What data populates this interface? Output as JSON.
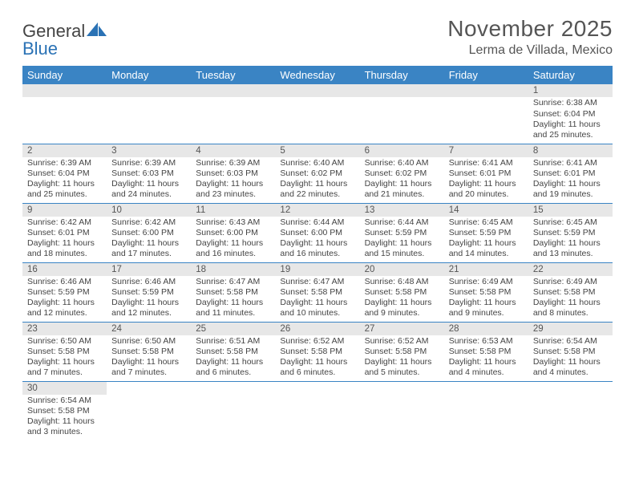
{
  "brand": {
    "general": "General",
    "blue": "Blue"
  },
  "title": "November 2025",
  "location": "Lerma de Villada, Mexico",
  "colors": {
    "header_bg": "#3a84c4",
    "header_text": "#ffffff",
    "daynum_bg": "#e7e7e7",
    "row_border": "#3a84c4",
    "page_bg": "#ffffff",
    "text": "#444444"
  },
  "weekdays": [
    "Sunday",
    "Monday",
    "Tuesday",
    "Wednesday",
    "Thursday",
    "Friday",
    "Saturday"
  ],
  "weeks": [
    [
      null,
      null,
      null,
      null,
      null,
      null,
      {
        "n": "1",
        "sr": "Sunrise: 6:38 AM",
        "ss": "Sunset: 6:04 PM",
        "dl1": "Daylight: 11 hours",
        "dl2": "and 25 minutes."
      }
    ],
    [
      {
        "n": "2",
        "sr": "Sunrise: 6:39 AM",
        "ss": "Sunset: 6:04 PM",
        "dl1": "Daylight: 11 hours",
        "dl2": "and 25 minutes."
      },
      {
        "n": "3",
        "sr": "Sunrise: 6:39 AM",
        "ss": "Sunset: 6:03 PM",
        "dl1": "Daylight: 11 hours",
        "dl2": "and 24 minutes."
      },
      {
        "n": "4",
        "sr": "Sunrise: 6:39 AM",
        "ss": "Sunset: 6:03 PM",
        "dl1": "Daylight: 11 hours",
        "dl2": "and 23 minutes."
      },
      {
        "n": "5",
        "sr": "Sunrise: 6:40 AM",
        "ss": "Sunset: 6:02 PM",
        "dl1": "Daylight: 11 hours",
        "dl2": "and 22 minutes."
      },
      {
        "n": "6",
        "sr": "Sunrise: 6:40 AM",
        "ss": "Sunset: 6:02 PM",
        "dl1": "Daylight: 11 hours",
        "dl2": "and 21 minutes."
      },
      {
        "n": "7",
        "sr": "Sunrise: 6:41 AM",
        "ss": "Sunset: 6:01 PM",
        "dl1": "Daylight: 11 hours",
        "dl2": "and 20 minutes."
      },
      {
        "n": "8",
        "sr": "Sunrise: 6:41 AM",
        "ss": "Sunset: 6:01 PM",
        "dl1": "Daylight: 11 hours",
        "dl2": "and 19 minutes."
      }
    ],
    [
      {
        "n": "9",
        "sr": "Sunrise: 6:42 AM",
        "ss": "Sunset: 6:01 PM",
        "dl1": "Daylight: 11 hours",
        "dl2": "and 18 minutes."
      },
      {
        "n": "10",
        "sr": "Sunrise: 6:42 AM",
        "ss": "Sunset: 6:00 PM",
        "dl1": "Daylight: 11 hours",
        "dl2": "and 17 minutes."
      },
      {
        "n": "11",
        "sr": "Sunrise: 6:43 AM",
        "ss": "Sunset: 6:00 PM",
        "dl1": "Daylight: 11 hours",
        "dl2": "and 16 minutes."
      },
      {
        "n": "12",
        "sr": "Sunrise: 6:44 AM",
        "ss": "Sunset: 6:00 PM",
        "dl1": "Daylight: 11 hours",
        "dl2": "and 16 minutes."
      },
      {
        "n": "13",
        "sr": "Sunrise: 6:44 AM",
        "ss": "Sunset: 5:59 PM",
        "dl1": "Daylight: 11 hours",
        "dl2": "and 15 minutes."
      },
      {
        "n": "14",
        "sr": "Sunrise: 6:45 AM",
        "ss": "Sunset: 5:59 PM",
        "dl1": "Daylight: 11 hours",
        "dl2": "and 14 minutes."
      },
      {
        "n": "15",
        "sr": "Sunrise: 6:45 AM",
        "ss": "Sunset: 5:59 PM",
        "dl1": "Daylight: 11 hours",
        "dl2": "and 13 minutes."
      }
    ],
    [
      {
        "n": "16",
        "sr": "Sunrise: 6:46 AM",
        "ss": "Sunset: 5:59 PM",
        "dl1": "Daylight: 11 hours",
        "dl2": "and 12 minutes."
      },
      {
        "n": "17",
        "sr": "Sunrise: 6:46 AM",
        "ss": "Sunset: 5:59 PM",
        "dl1": "Daylight: 11 hours",
        "dl2": "and 12 minutes."
      },
      {
        "n": "18",
        "sr": "Sunrise: 6:47 AM",
        "ss": "Sunset: 5:58 PM",
        "dl1": "Daylight: 11 hours",
        "dl2": "and 11 minutes."
      },
      {
        "n": "19",
        "sr": "Sunrise: 6:47 AM",
        "ss": "Sunset: 5:58 PM",
        "dl1": "Daylight: 11 hours",
        "dl2": "and 10 minutes."
      },
      {
        "n": "20",
        "sr": "Sunrise: 6:48 AM",
        "ss": "Sunset: 5:58 PM",
        "dl1": "Daylight: 11 hours",
        "dl2": "and 9 minutes."
      },
      {
        "n": "21",
        "sr": "Sunrise: 6:49 AM",
        "ss": "Sunset: 5:58 PM",
        "dl1": "Daylight: 11 hours",
        "dl2": "and 9 minutes."
      },
      {
        "n": "22",
        "sr": "Sunrise: 6:49 AM",
        "ss": "Sunset: 5:58 PM",
        "dl1": "Daylight: 11 hours",
        "dl2": "and 8 minutes."
      }
    ],
    [
      {
        "n": "23",
        "sr": "Sunrise: 6:50 AM",
        "ss": "Sunset: 5:58 PM",
        "dl1": "Daylight: 11 hours",
        "dl2": "and 7 minutes."
      },
      {
        "n": "24",
        "sr": "Sunrise: 6:50 AM",
        "ss": "Sunset: 5:58 PM",
        "dl1": "Daylight: 11 hours",
        "dl2": "and 7 minutes."
      },
      {
        "n": "25",
        "sr": "Sunrise: 6:51 AM",
        "ss": "Sunset: 5:58 PM",
        "dl1": "Daylight: 11 hours",
        "dl2": "and 6 minutes."
      },
      {
        "n": "26",
        "sr": "Sunrise: 6:52 AM",
        "ss": "Sunset: 5:58 PM",
        "dl1": "Daylight: 11 hours",
        "dl2": "and 6 minutes."
      },
      {
        "n": "27",
        "sr": "Sunrise: 6:52 AM",
        "ss": "Sunset: 5:58 PM",
        "dl1": "Daylight: 11 hours",
        "dl2": "and 5 minutes."
      },
      {
        "n": "28",
        "sr": "Sunrise: 6:53 AM",
        "ss": "Sunset: 5:58 PM",
        "dl1": "Daylight: 11 hours",
        "dl2": "and 4 minutes."
      },
      {
        "n": "29",
        "sr": "Sunrise: 6:54 AM",
        "ss": "Sunset: 5:58 PM",
        "dl1": "Daylight: 11 hours",
        "dl2": "and 4 minutes."
      }
    ],
    [
      {
        "n": "30",
        "sr": "Sunrise: 6:54 AM",
        "ss": "Sunset: 5:58 PM",
        "dl1": "Daylight: 11 hours",
        "dl2": "and 3 minutes."
      },
      null,
      null,
      null,
      null,
      null,
      null
    ]
  ]
}
